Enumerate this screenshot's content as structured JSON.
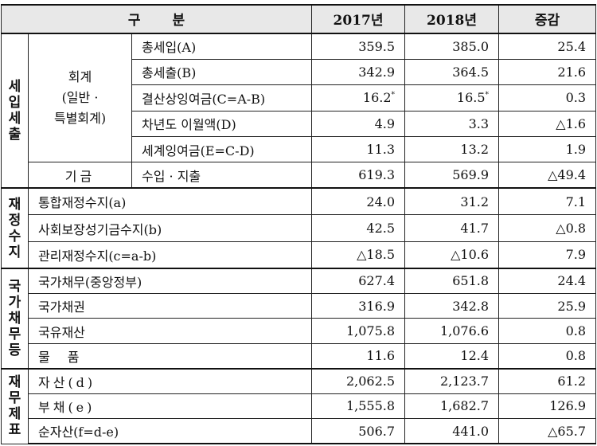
{
  "header": {
    "category": "구분",
    "col_2017": "2017년",
    "col_2018": "2018년",
    "col_change": "증감"
  },
  "sections": {
    "revenue_expenditure": [
      "세",
      "입",
      "세",
      "출"
    ],
    "fiscal_balance": [
      "재",
      "정",
      "수",
      "지"
    ],
    "national_debt": [
      "국",
      "가",
      "채",
      "무",
      "등"
    ],
    "financial_statements": [
      "재",
      "무",
      "제",
      "표"
    ]
  },
  "subgroups": {
    "accounts": [
      "회계",
      "(일반 ·",
      "특별회계)"
    ],
    "funds": "기금"
  },
  "rows": [
    {
      "label": "총세입(A)",
      "v2017": "359.5",
      "v2018": "385.0",
      "change": "25.4"
    },
    {
      "label": "총세출(B)",
      "v2017": "342.9",
      "v2018": "364.5",
      "change": "21.6"
    },
    {
      "label": "결산상잉여금(C=A-B)",
      "v2017": "16.2",
      "v2018": "16.5",
      "change": "0.3",
      "mark": "*"
    },
    {
      "label": "차년도 이월액(D)",
      "v2017": "4.9",
      "v2018": "3.3",
      "change": "△1.6"
    },
    {
      "label": "세계잉여금(E=C-D)",
      "v2017": "11.3",
      "v2018": "13.2",
      "change": "1.9"
    },
    {
      "label": "수입 · 지출",
      "v2017": "619.3",
      "v2018": "569.9",
      "change": "△49.4"
    },
    {
      "label": "통합재정수지(a)",
      "v2017": "24.0",
      "v2018": "31.2",
      "change": "7.1"
    },
    {
      "label": "사회보장성기금수지(b)",
      "v2017": "42.5",
      "v2018": "41.7",
      "change": "△0.8"
    },
    {
      "label": "관리재정수지(c=a-b)",
      "v2017": "△18.5",
      "v2018": "△10.6",
      "change": "7.9"
    },
    {
      "label": "국가채무(중앙정부)",
      "v2017": "627.4",
      "v2018": "651.8",
      "change": "24.4"
    },
    {
      "label": "국가채권",
      "v2017": "316.9",
      "v2018": "342.8",
      "change": "25.9"
    },
    {
      "label": "국유재산",
      "v2017": "1,075.8",
      "v2018": "1,076.6",
      "change": "0.8"
    },
    {
      "label": "물품",
      "v2017": "11.6",
      "v2018": "12.4",
      "change": "0.8"
    },
    {
      "label": "자산(d)",
      "v2017": "2,062.5",
      "v2018": "2,123.7",
      "change": "61.2"
    },
    {
      "label": "부채(e)",
      "v2017": "1,555.8",
      "v2018": "1,682.7",
      "change": "126.9"
    },
    {
      "label": "순자산(f=d-e)",
      "v2017": "506.7",
      "v2018": "441.0",
      "change": "△65.7"
    }
  ]
}
